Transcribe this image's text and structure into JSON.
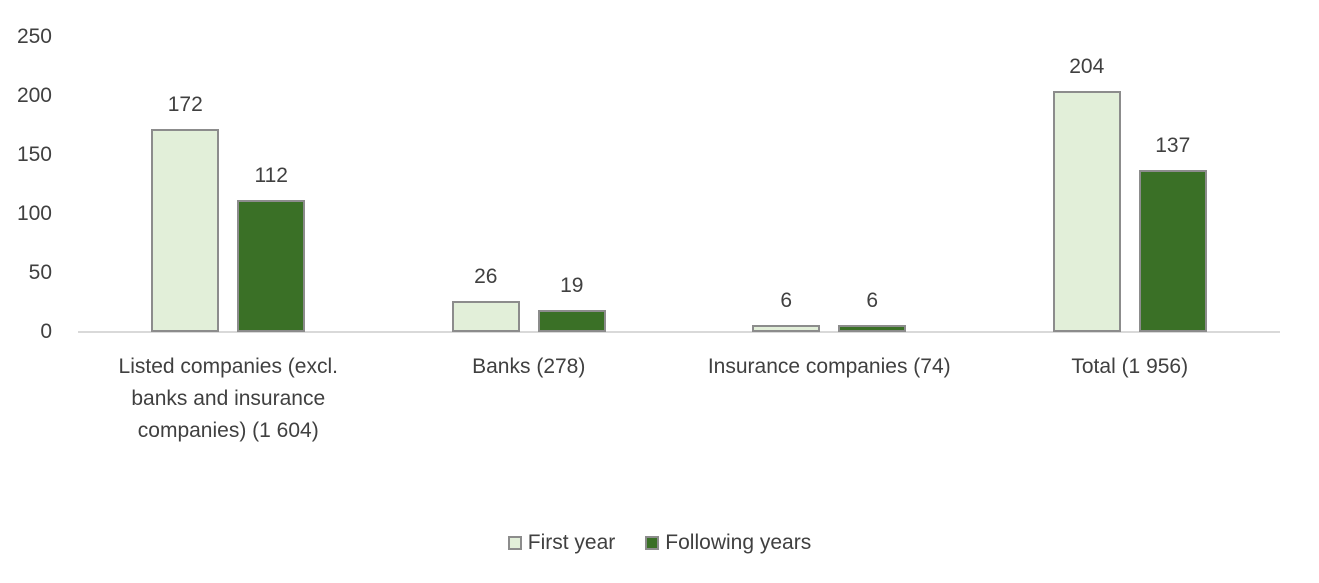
{
  "chart_data": {
    "type": "bar",
    "title": "",
    "xlabel": "",
    "ylabel": "",
    "ylim": [
      0,
      250
    ],
    "yticks": [
      0,
      50,
      100,
      150,
      200,
      250
    ],
    "grid": false,
    "legend_position": "bottom",
    "categories": [
      "Listed companies (excl. banks and insurance companies) (1 604)",
      "Banks (278)",
      "Insurance companies (74)",
      "Total (1 956)"
    ],
    "series": [
      {
        "name": "First year",
        "values": [
          172,
          26,
          6,
          204
        ],
        "color": "#e2efd9"
      },
      {
        "name": "Following years",
        "values": [
          112,
          19,
          6,
          137
        ],
        "color": "#3a7026"
      }
    ],
    "data_labels": true
  }
}
